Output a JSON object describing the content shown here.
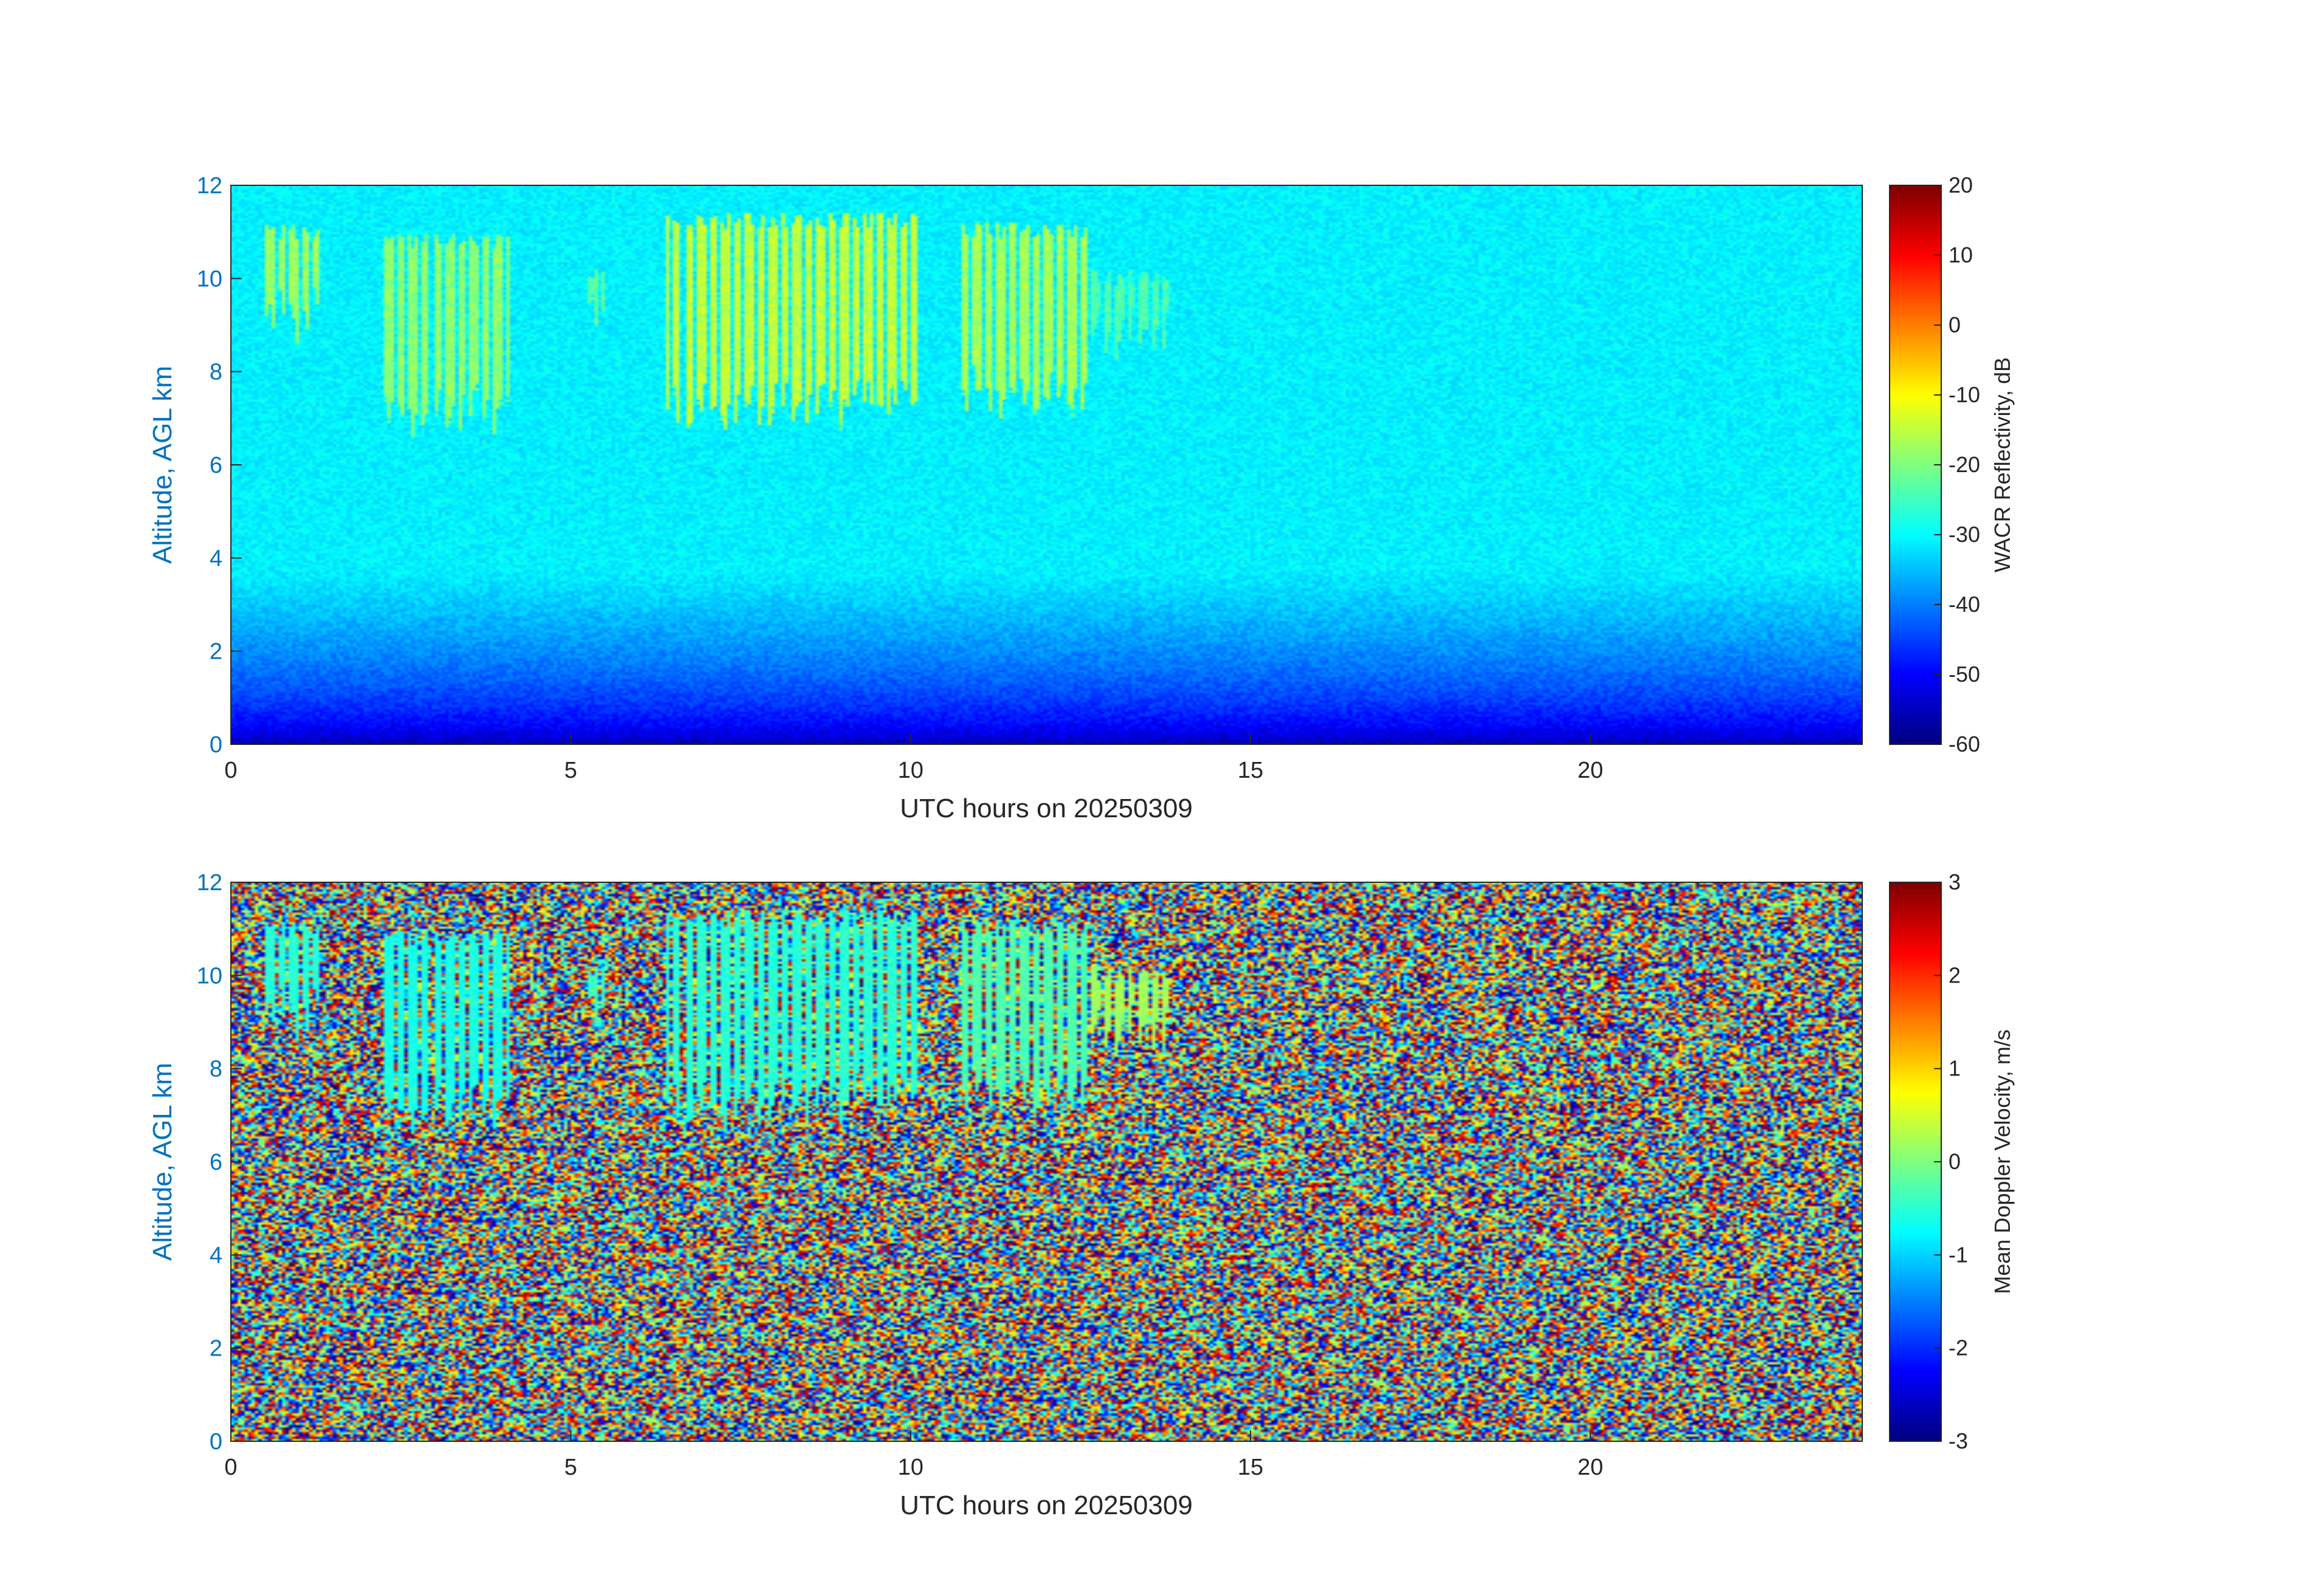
{
  "chart_data": [
    {
      "type": "heatmap",
      "name": "reflectivity",
      "xlabel": "UTC hours on 20250309",
      "ylabel": "Altitude, AGL km",
      "xlim": [
        0,
        24
      ],
      "ylim": [
        0,
        12
      ],
      "xticks": [
        0,
        5,
        10,
        15,
        20
      ],
      "yticks": [
        0,
        2,
        4,
        6,
        8,
        10,
        12
      ],
      "colorbar": {
        "label": "WACR Reflectivity, dB",
        "range": [
          -60,
          20
        ],
        "ticks": [
          -60,
          -50,
          -40,
          -30,
          -20,
          -10,
          0,
          10,
          20
        ],
        "colormap": "jet"
      },
      "background": {
        "surface_value": -58,
        "top_value": -31
      },
      "cloud_features": [
        {
          "t_start": 0.5,
          "t_end": 1.3,
          "z_base": 9.2,
          "z_top": 11.2,
          "value": -18
        },
        {
          "t_start": 2.2,
          "t_end": 4.1,
          "z_base": 7.2,
          "z_top": 11.0,
          "value": -19
        },
        {
          "t_start": 5.2,
          "t_end": 5.5,
          "z_base": 9.1,
          "z_top": 10.3,
          "value": -22
        },
        {
          "t_start": 6.4,
          "t_end": 10.1,
          "z_base": 7.3,
          "z_top": 11.4,
          "value": -15
        },
        {
          "t_start": 10.7,
          "t_end": 12.6,
          "z_base": 7.6,
          "z_top": 11.2,
          "value": -17
        },
        {
          "t_start": 12.6,
          "t_end": 13.8,
          "z_base": 8.8,
          "z_top": 10.2,
          "value": -24
        }
      ]
    },
    {
      "type": "heatmap",
      "name": "doppler",
      "xlabel": "UTC hours on 20250309",
      "ylabel": "Altitude, AGL km",
      "xlim": [
        0,
        24
      ],
      "ylim": [
        0,
        12
      ],
      "xticks": [
        0,
        5,
        10,
        15,
        20
      ],
      "yticks": [
        0,
        2,
        4,
        6,
        8,
        10,
        12
      ],
      "colorbar": {
        "label": "Mean Doppler Velocity, m/s",
        "range": [
          -3,
          3
        ],
        "ticks": [
          -3,
          -2,
          -1,
          0,
          1,
          2,
          3
        ],
        "colormap": "jet"
      },
      "background": {
        "noise": "uniform",
        "range": [
          -3,
          3
        ]
      },
      "cloud_features": [
        {
          "t_start": 0.5,
          "t_end": 1.3,
          "z_base": 9.2,
          "z_top": 11.2,
          "value": -0.5
        },
        {
          "t_start": 2.2,
          "t_end": 4.1,
          "z_base": 7.2,
          "z_top": 11.0,
          "value": -0.6
        },
        {
          "t_start": 5.2,
          "t_end": 5.5,
          "z_base": 9.1,
          "z_top": 10.3,
          "value": -0.4
        },
        {
          "t_start": 6.4,
          "t_end": 10.1,
          "z_base": 7.3,
          "z_top": 11.4,
          "value": -0.5
        },
        {
          "t_start": 10.7,
          "t_end": 12.6,
          "z_base": 7.6,
          "z_top": 11.2,
          "value": -0.3
        },
        {
          "t_start": 12.6,
          "t_end": 13.8,
          "z_base": 8.8,
          "z_top": 10.2,
          "value": 0.2
        }
      ]
    }
  ],
  "colors": {
    "ytick_color": "#0072bd",
    "xtick_color": "#262626"
  }
}
